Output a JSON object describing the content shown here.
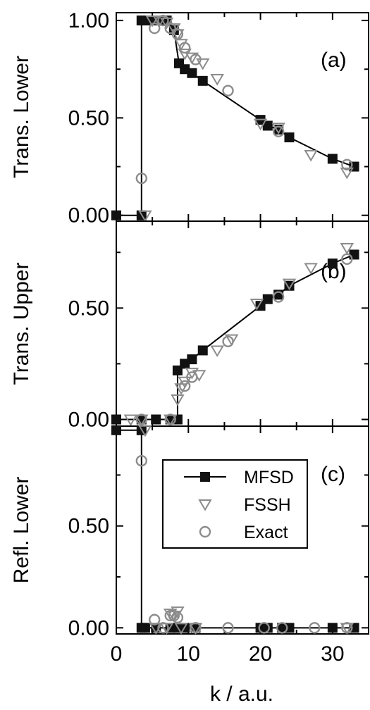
{
  "chart_data": {
    "type": "scatter",
    "xlabel": "k / a.u.",
    "xlim": [
      0,
      35
    ],
    "x_ticks": [
      0,
      10,
      20,
      30
    ],
    "legend": {
      "panel": 2,
      "placement": "center",
      "entries": [
        {
          "series": "MFSD",
          "label": "MFSD"
        },
        {
          "series": "FSSH",
          "label": "FSSH"
        },
        {
          "series": "Exact",
          "label": "Exact"
        }
      ]
    },
    "panels": [
      {
        "label": "(a)",
        "ylabel": "Trans. Lower",
        "ylim": [
          -0.03,
          1.04
        ],
        "y_ticks": [
          0.0,
          0.5,
          1.0
        ],
        "y_tick_labels": [
          "0.00",
          "0.50",
          "1.00"
        ],
        "series": [
          {
            "name": "MFSD",
            "style": "line-square",
            "x": [
              0,
              3.5,
              3.5,
              4,
              5,
              6,
              7,
              8,
              8.7,
              9.5,
              10.5,
              12,
              20,
              21,
              22.5,
              24,
              30,
              33
            ],
            "y": [
              0.0,
              0.0,
              1.0,
              1.0,
              1.0,
              1.0,
              1.0,
              0.95,
              0.78,
              0.75,
              0.73,
              0.69,
              0.49,
              0.46,
              0.44,
              0.4,
              0.29,
              0.25
            ]
          },
          {
            "name": "FSSH",
            "style": "triangle",
            "x": [
              4,
              5,
              6,
              7,
              8,
              8.5,
              9,
              9.5,
              10.5,
              12,
              14,
              20,
              22.5,
              27,
              32
            ],
            "y": [
              0.0,
              1.0,
              1.0,
              0.99,
              0.96,
              0.93,
              0.88,
              0.83,
              0.81,
              0.78,
              0.7,
              0.47,
              0.45,
              0.31,
              0.22
            ]
          },
          {
            "name": "Exact",
            "style": "circle",
            "x": [
              3.5,
              5.3,
              6.5,
              7.5,
              8.5,
              9.5,
              11,
              15.5,
              22.5,
              32
            ],
            "y": [
              0.19,
              0.96,
              1.0,
              0.96,
              0.93,
              0.86,
              0.8,
              0.64,
              0.43,
              0.26
            ]
          }
        ]
      },
      {
        "label": "(b)",
        "ylabel": "Trans. Upper",
        "ylim": [
          -0.03,
          0.89
        ],
        "y_ticks": [
          0.0,
          0.5
        ],
        "y_tick_labels": [
          "0.00",
          "0.50"
        ],
        "series": [
          {
            "name": "MFSD",
            "style": "line-square",
            "x": [
              0,
              3.5,
              5.5,
              7.5,
              8.5,
              8.5,
              9.5,
              10.5,
              12,
              20,
              21,
              22.5,
              24,
              30,
              33
            ],
            "y": [
              0.0,
              0.0,
              0.0,
              0.0,
              0.0,
              0.22,
              0.25,
              0.27,
              0.31,
              0.51,
              0.54,
              0.56,
              0.6,
              0.7,
              0.74
            ]
          },
          {
            "name": "FSSH",
            "style": "triangle",
            "x": [
              2,
              3.5,
              7.5,
              8.5,
              9,
              9.5,
              10.5,
              11.5,
              14,
              16,
              19.5,
              24,
              27,
              32
            ],
            "y": [
              0.0,
              0.0,
              0.0,
              0.09,
              0.14,
              0.17,
              0.21,
              0.2,
              0.31,
              0.36,
              0.52,
              0.61,
              0.68,
              0.77
            ]
          },
          {
            "name": "Exact",
            "style": "circle",
            "x": [
              3.5,
              7.5,
              9.5,
              10.5,
              15.5,
              22.5,
              32
            ],
            "y": [
              0.0,
              0.0,
              0.15,
              0.19,
              0.35,
              0.55,
              0.72
            ]
          }
        ]
      },
      {
        "label": "(c)",
        "ylabel": "Refl. Lower",
        "ylim": [
          -0.03,
          0.99
        ],
        "y_ticks": [
          0.0,
          0.5
        ],
        "y_tick_labels": [
          "0.00",
          "0.50"
        ],
        "series": [
          {
            "name": "MFSD",
            "style": "line-square",
            "x": [
              0,
              3.5,
              3.5,
              4,
              5.5,
              7.5,
              8.5,
              9.5,
              11,
              20,
              21,
              23,
              24,
              30,
              33
            ],
            "y": [
              0.97,
              0.97,
              0.0,
              0.0,
              0.0,
              0.0,
              0.0,
              0.0,
              0.0,
              0.0,
              0.0,
              0.0,
              0.0,
              0.0,
              0.0
            ]
          },
          {
            "name": "FSSH",
            "style": "triangle",
            "x": [
              4,
              5.5,
              7,
              7.5,
              8,
              8.5,
              9,
              11,
              32
            ],
            "y": [
              0.97,
              0.0,
              0.0,
              0.07,
              0.06,
              0.08,
              0.0,
              0.0,
              0.0
            ]
          },
          {
            "name": "Exact",
            "style": "circle",
            "x": [
              3.5,
              5.3,
              6.5,
              7.5,
              8,
              8.5,
              11,
              15.5,
              20.5,
              23,
              27.5,
              32
            ],
            "y": [
              0.82,
              0.04,
              0.0,
              0.06,
              0.06,
              0.05,
              0.0,
              0.0,
              0.0,
              0.0,
              0.0,
              0.0
            ]
          }
        ]
      }
    ]
  }
}
